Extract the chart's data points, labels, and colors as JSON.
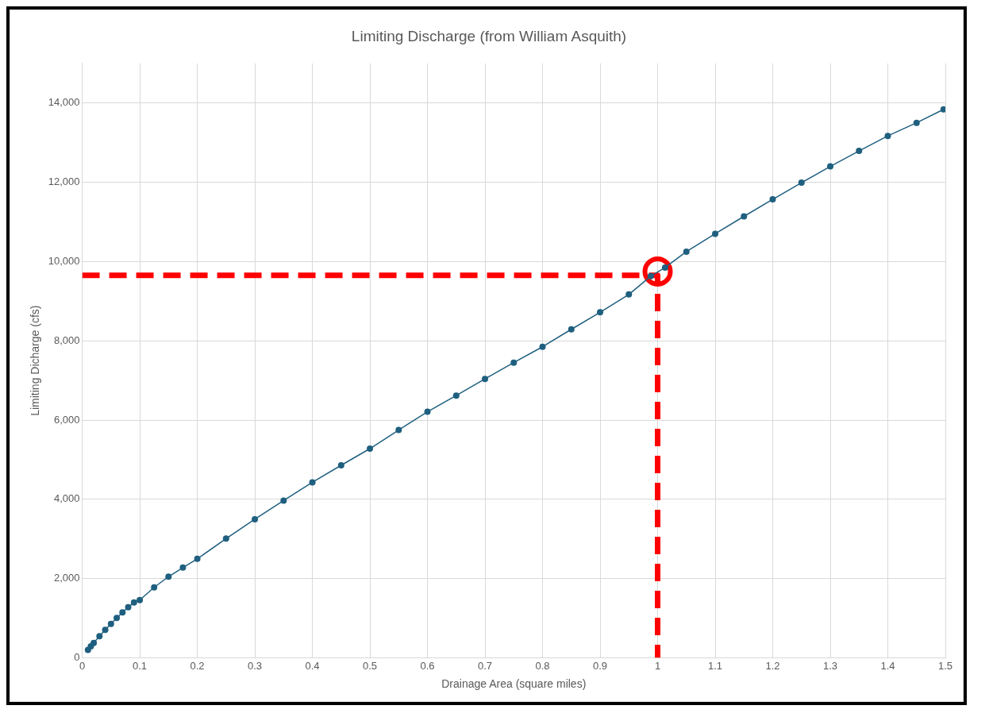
{
  "chart_data": {
    "type": "line",
    "title": "Limiting Discharge (from William Asquith)",
    "xlabel": "Drainage Area (square miles)",
    "ylabel": "Limiting Dicharge (cfs)",
    "xlim": [
      0,
      1.5
    ],
    "xticks": [
      0,
      0.1,
      0.2,
      0.3,
      0.4,
      0.5,
      0.6,
      0.7,
      0.8,
      0.9,
      1,
      1.1,
      1.2,
      1.3,
      1.4,
      1.5
    ],
    "ylim": [
      0,
      15000
    ],
    "yticks": [
      0,
      {
        "value": 2000,
        "label": "2,000"
      },
      {
        "value": 4000,
        "label": "4,000"
      },
      {
        "value": 6000,
        "label": "6,000"
      },
      {
        "value": 8000,
        "label": "8,000"
      },
      {
        "value": 10000,
        "label": "10,000"
      },
      {
        "value": 12000,
        "label": "12,000"
      },
      {
        "value": 14000,
        "label": "14,000"
      }
    ],
    "grid": true,
    "legend": false,
    "series": [
      {
        "type": "line",
        "color": "#1f5f7f",
        "marker": "circle",
        "line_style": "solid",
        "x": [
          0.01,
          0.015,
          0.02,
          0.03,
          0.04,
          0.05,
          0.06,
          0.07,
          0.08,
          0.09,
          0.1,
          0.125,
          0.15,
          0.175,
          0.2,
          0.25,
          0.3,
          0.35,
          0.4,
          0.45,
          0.5,
          0.55,
          0.6,
          0.65,
          0.7,
          0.75,
          0.8,
          0.85,
          0.9,
          0.95,
          0.988,
          1.013,
          1.05,
          1.1,
          1.15,
          1.2,
          1.25,
          1.3,
          1.35,
          1.4,
          1.45,
          1.497
        ],
        "values": [
          200,
          290,
          380,
          550,
          710,
          860,
          1010,
          1150,
          1280,
          1400,
          1460,
          1780,
          2050,
          2280,
          2500,
          3010,
          3500,
          3970,
          4430,
          4860,
          5280,
          5750,
          6210,
          6620,
          7040,
          7450,
          7850,
          8290,
          8720,
          9170,
          9630,
          9850,
          10250,
          10700,
          11140,
          11570,
          11990,
          12400,
          12790,
          13170,
          13500,
          13840
        ]
      },
      {
        "type": "line",
        "color": "#ff0000",
        "marker": "none",
        "line_style": "dashed",
        "x": [
          0,
          1,
          1
        ],
        "values": [
          9650,
          9650,
          0
        ]
      },
      {
        "type": "scatter",
        "color": "#ff0000",
        "marker": "circle",
        "x": [
          1
        ],
        "values": [
          9750
        ]
      }
    ]
  }
}
